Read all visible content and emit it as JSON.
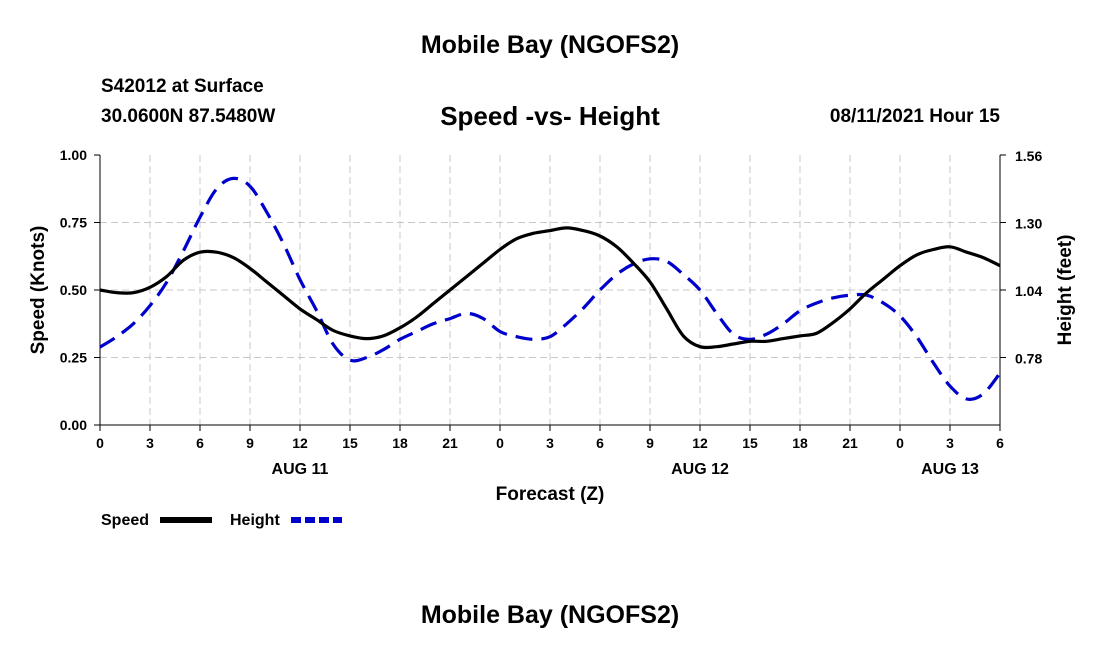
{
  "page": {
    "top_title": "Mobile Bay (NGOFS2)",
    "bottom_title": "Mobile Bay (NGOFS2)",
    "station": "S42012 at Surface",
    "coords": "30.0600N  87.5480W",
    "subtitle": "Speed -vs- Height",
    "datetime": "08/11/2021 Hour 15"
  },
  "chart_data": {
    "type": "line",
    "xlabel": "Forecast (Z)",
    "ylabel": "Speed (Knots)",
    "y2label": "Height (feet)",
    "x_ticks": [
      "0",
      "3",
      "6",
      "9",
      "12",
      "15",
      "18",
      "21",
      "0",
      "3",
      "6",
      "9",
      "12",
      "15",
      "18",
      "21",
      "0",
      "3",
      "6"
    ],
    "day_labels": [
      {
        "label": "AUG 11",
        "hour": 12
      },
      {
        "label": "AUG 12",
        "hour": 36
      },
      {
        "label": "AUG 13",
        "hour": 51
      }
    ],
    "xlim": [
      0,
      54
    ],
    "ylim": [
      0,
      1.0
    ],
    "y_ticks": [
      "0.00",
      "0.25",
      "0.50",
      "0.75",
      "1.00"
    ],
    "y2lim": [
      0.52,
      1.56
    ],
    "y2_ticks": [
      "0.78",
      "1.04",
      "1.30",
      "1.56"
    ],
    "grid": true,
    "legend_position": "bottom-left",
    "colors": {
      "speed": "#000000",
      "height": "#0000cc",
      "grid": "#c8c8c8"
    },
    "series": [
      {
        "name": "Speed",
        "axis": "left",
        "style": "solid",
        "x": [
          0,
          1,
          2,
          3,
          4,
          5,
          6,
          7,
          8,
          9,
          10,
          11,
          12,
          13,
          14,
          15,
          16,
          17,
          18,
          19,
          20,
          21,
          22,
          23,
          24,
          25,
          26,
          27,
          28,
          29,
          30,
          31,
          32,
          33,
          34,
          35,
          36,
          37,
          38,
          39,
          40,
          41,
          42,
          43,
          44,
          45,
          46,
          47,
          48,
          49,
          50,
          51,
          52,
          53,
          54
        ],
        "values": [
          0.5,
          0.49,
          0.49,
          0.51,
          0.55,
          0.61,
          0.64,
          0.64,
          0.62,
          0.58,
          0.53,
          0.48,
          0.43,
          0.39,
          0.35,
          0.33,
          0.32,
          0.33,
          0.36,
          0.4,
          0.45,
          0.5,
          0.55,
          0.6,
          0.65,
          0.69,
          0.71,
          0.72,
          0.73,
          0.72,
          0.7,
          0.66,
          0.6,
          0.53,
          0.43,
          0.33,
          0.29,
          0.29,
          0.3,
          0.31,
          0.31,
          0.32,
          0.33,
          0.34,
          0.38,
          0.43,
          0.49,
          0.54,
          0.59,
          0.63,
          0.65,
          0.66,
          0.64,
          0.62,
          0.59
        ]
      },
      {
        "name": "Height",
        "axis": "right",
        "style": "dashed",
        "x": [
          0,
          1,
          2,
          3,
          4,
          5,
          6,
          7,
          8,
          9,
          10,
          11,
          12,
          13,
          14,
          15,
          16,
          17,
          18,
          19,
          20,
          21,
          22,
          23,
          24,
          25,
          26,
          27,
          28,
          29,
          30,
          31,
          32,
          33,
          34,
          35,
          36,
          37,
          38,
          39,
          40,
          41,
          42,
          43,
          44,
          45,
          46,
          47,
          48,
          49,
          50,
          51,
          52,
          53,
          54
        ],
        "values": [
          0.82,
          0.86,
          0.91,
          0.98,
          1.07,
          1.19,
          1.32,
          1.43,
          1.47,
          1.44,
          1.34,
          1.22,
          1.08,
          0.96,
          0.83,
          0.77,
          0.78,
          0.81,
          0.85,
          0.88,
          0.91,
          0.93,
          0.95,
          0.93,
          0.88,
          0.86,
          0.85,
          0.86,
          0.91,
          0.97,
          1.04,
          1.1,
          1.14,
          1.16,
          1.15,
          1.1,
          1.04,
          0.95,
          0.87,
          0.85,
          0.87,
          0.91,
          0.96,
          0.99,
          1.01,
          1.02,
          1.02,
          0.99,
          0.94,
          0.86,
          0.76,
          0.67,
          0.62,
          0.64,
          0.72
        ]
      }
    ]
  }
}
